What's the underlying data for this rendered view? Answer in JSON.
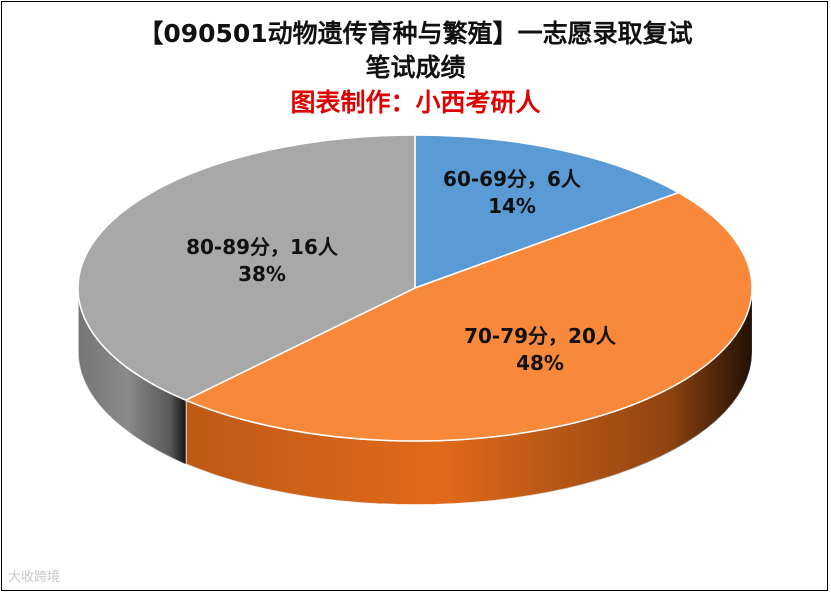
{
  "title_line1": "【090501动物遗传育种与繁殖】一志愿录取复试",
  "title_line2": "笔试成绩",
  "subtitle": "图表制作：小西考研人",
  "watermark": "大收跨境",
  "chart_data": {
    "type": "pie",
    "title": "【090501动物遗传育种与繁殖】一志愿录取复试笔试成绩",
    "subtitle": "图表制作：小西考研人",
    "slices": [
      {
        "label": "60-69分，6人",
        "value": 6,
        "percent": "14%",
        "color": "#5b9bd5",
        "side": "#3f78b0"
      },
      {
        "label": "70-79分，20人",
        "value": 20,
        "percent": "48%",
        "color": "#f8883a",
        "side": "#e06a1a"
      },
      {
        "label": "80-89分，16人",
        "value": 16,
        "percent": "38%",
        "color": "#a8a8a8",
        "side": "#8a8a8a"
      }
    ],
    "legend": "none"
  }
}
